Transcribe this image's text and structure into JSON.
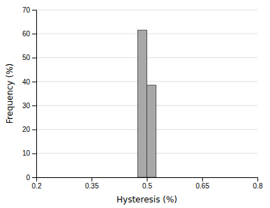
{
  "chart_data": {
    "type": "histogram",
    "bins": [
      0.475,
      0.5,
      0.525
    ],
    "values": [
      61.5,
      38.5
    ],
    "color": "#a8a8a8",
    "xlabel": "Hysteresis (%)",
    "ylabel": "Frequency (%)",
    "xlim": [
      0.2,
      0.8
    ],
    "xticks": [
      0.2,
      0.35,
      0.5,
      0.65,
      0.8
    ],
    "ylim": [
      0,
      70
    ],
    "yticks": [
      0,
      10,
      20,
      30,
      40,
      50,
      60,
      70
    ],
    "grid": true
  }
}
